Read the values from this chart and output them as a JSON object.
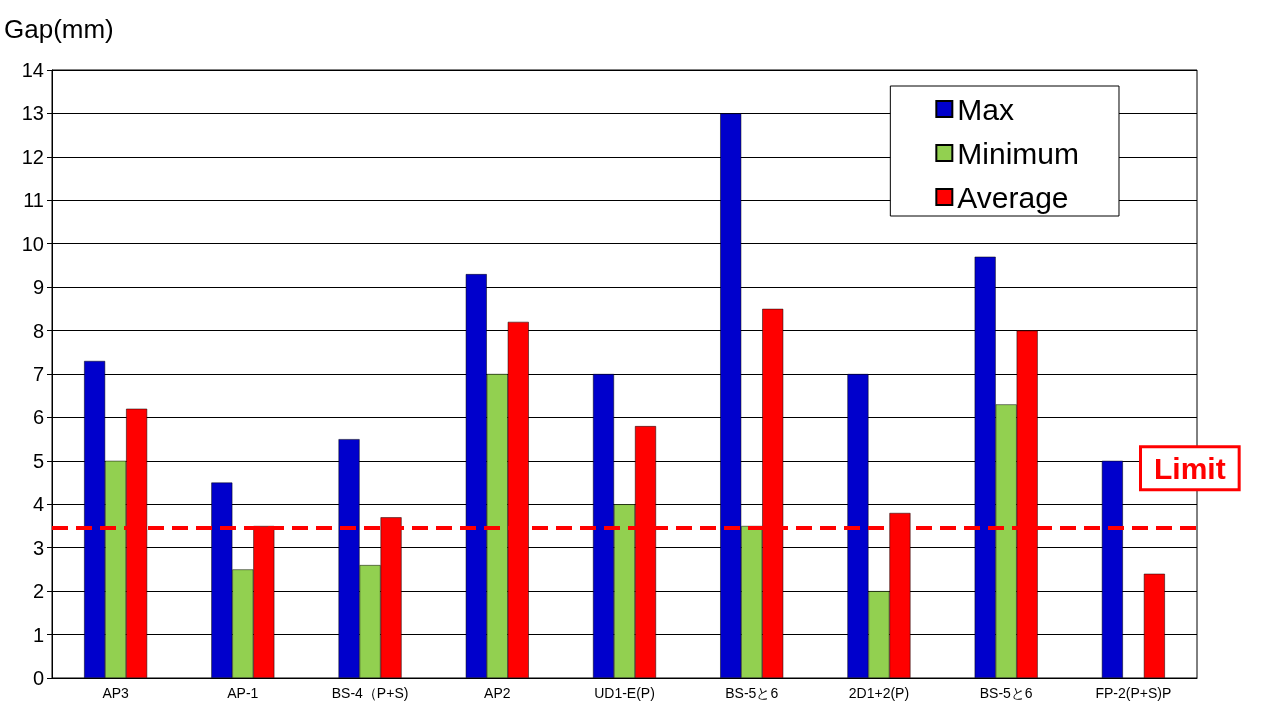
{
  "chart_data": {
    "type": "bar",
    "ylabel": "Gap(mm)",
    "categories": [
      "AP3",
      "AP-1",
      "BS-4（P+S)",
      "AP2",
      "UD1-E(P)",
      "BS-5と6",
      "2D1+2(P)",
      "BS-5と6",
      "FP-2(P+S)P"
    ],
    "series": [
      {
        "name": "Max",
        "color": "#0000cc",
        "values": [
          7.3,
          4.5,
          5.5,
          9.3,
          7,
          13,
          7,
          9.7,
          5
        ]
      },
      {
        "name": "Minimum",
        "color": "#92d050",
        "values": [
          5,
          2.5,
          2.6,
          7,
          4,
          3.5,
          2,
          6.3,
          null
        ]
      },
      {
        "name": "Average",
        "color": "#ff0000",
        "values": [
          6.2,
          3.5,
          3.7,
          8.2,
          5.8,
          8.5,
          3.8,
          8,
          2.4
        ]
      }
    ],
    "ylim": [
      0,
      14
    ],
    "yticks": [
      0,
      1,
      2,
      3,
      4,
      5,
      6,
      7,
      8,
      9,
      10,
      11,
      12,
      13,
      14
    ],
    "grid": "y",
    "legend": "top right",
    "ref_lines": [
      {
        "axis": "y",
        "value": 3.45,
        "label": "Limit",
        "color": "#ff0000",
        "line_style": "dashed"
      }
    ]
  }
}
